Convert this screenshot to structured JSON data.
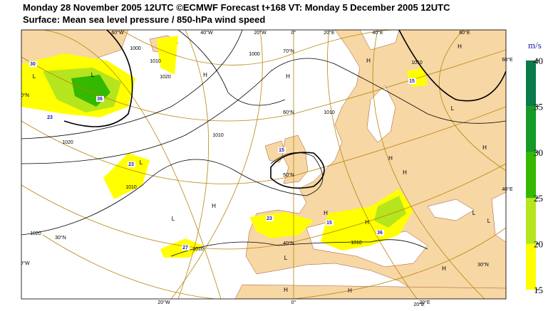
{
  "header": {
    "title": "Monday 28 November 2005 12UTC ©ECMWF Forecast t+168 VT: Monday 5 December 2005 12UTC",
    "subtitle": "Surface: Mean sea level pressure / 850-hPa wind speed"
  },
  "colorbar": {
    "unit": "m/s",
    "ticks": [
      15,
      20,
      25,
      30,
      35,
      40
    ],
    "colors": [
      "#ffff00",
      "#b5e61d",
      "#35b800",
      "#159a28",
      "#0a7a4a"
    ]
  },
  "map": {
    "pressure_labels": [
      "1000",
      "1010",
      "1020",
      "1000",
      "1020",
      "1010",
      "1010",
      "1020",
      "1010",
      "1010",
      "1010",
      "1010"
    ],
    "wind_labels": [
      "30",
      "36",
      "23",
      "23",
      "27",
      "23",
      "15",
      "15",
      "36",
      "15"
    ],
    "systems": [
      "H",
      "H",
      "H",
      "H",
      "L",
      "L",
      "L",
      "H",
      "H",
      "L",
      "H",
      "L",
      "H",
      "L",
      "H",
      "L",
      "H",
      "H",
      "H",
      "L",
      "H"
    ],
    "graticule_labels": [
      "70°N",
      "60°N",
      "50°N",
      "40°N",
      "30°N",
      "30°N",
      "60°N",
      "40°W",
      "60°E",
      "40°E",
      "20°E"
    ],
    "top_labels": [
      "60°W",
      "40°W",
      "20°W",
      "0°",
      "20°E",
      "40°E",
      "60°E"
    ],
    "bottom_labels": [
      "20°W",
      "0°",
      "20°E"
    ]
  }
}
